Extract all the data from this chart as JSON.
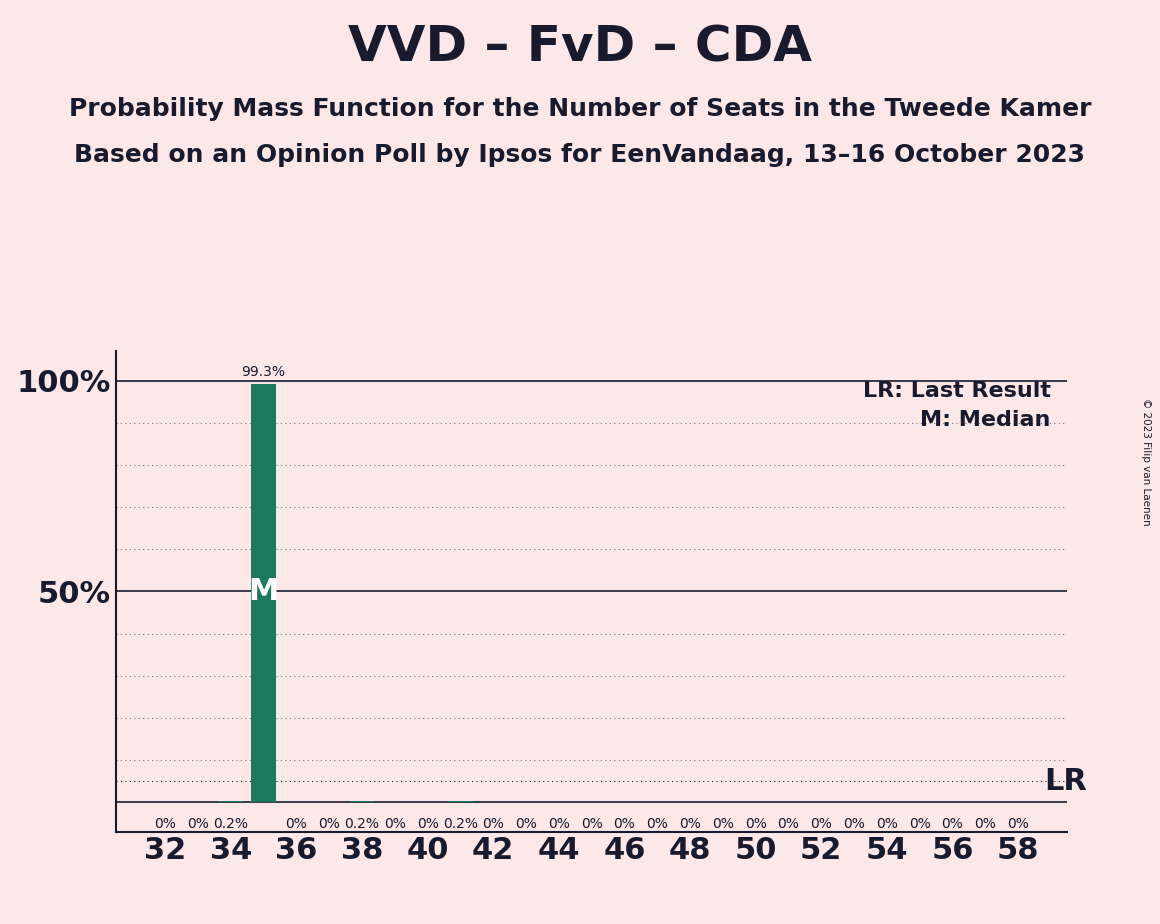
{
  "title": "VVD – FvD – CDA",
  "subtitle1": "Probability Mass Function for the Number of Seats in the Tweede Kamer",
  "subtitle2": "Based on an Opinion Poll by Ipsos for EenVandaag, 13–16 October 2023",
  "copyright": "© 2023 Filip van Laenen",
  "background_color": "#fce8e8",
  "bar_color": "#1a7a5e",
  "seats": [
    32,
    33,
    34,
    35,
    36,
    37,
    38,
    39,
    40,
    41,
    42,
    43,
    44,
    45,
    46,
    47,
    48,
    49,
    50,
    51,
    52,
    53,
    54,
    55,
    56,
    57,
    58
  ],
  "values": [
    0.0,
    0.0,
    0.2,
    99.3,
    0.0,
    0.0,
    0.2,
    0.0,
    0.0,
    0.2,
    0.0,
    0.0,
    0.0,
    0.0,
    0.0,
    0.0,
    0.0,
    0.0,
    0.0,
    0.0,
    0.0,
    0.0,
    0.0,
    0.0,
    0.0,
    0.0,
    0.0
  ],
  "bar_labels": [
    "0%",
    "0%",
    "0.2%",
    "",
    "0%",
    "0%",
    "0.2%",
    "0%",
    "0%",
    "0.2%",
    "0%",
    "0%",
    "0%",
    "0%",
    "0%",
    "0%",
    "0%",
    "0%",
    "0%",
    "0%",
    "0%",
    "0%",
    "0%",
    "0%",
    "0%",
    "0%",
    "0%"
  ],
  "median_seat": 35,
  "lr_seat": 58,
  "lr_value": 5.0,
  "yticks": [
    0,
    10,
    20,
    30,
    40,
    50,
    60,
    70,
    80,
    90,
    100
  ],
  "solid_lines": [
    0,
    50,
    100
  ],
  "xticks": [
    32,
    34,
    36,
    38,
    40,
    42,
    44,
    46,
    48,
    50,
    52,
    54,
    56,
    58
  ],
  "solid_line_color": "#1a1a2e",
  "dotted_line_color": "#777777",
  "text_color": "#1a1a2e",
  "lr_label_legend": "LR: Last Result",
  "m_label_legend": "M: Median",
  "title_fontsize": 36,
  "subtitle_fontsize": 18,
  "legend_fontsize": 16,
  "bar_label_fontsize": 10,
  "ytick_fontsize": 22,
  "xtick_fontsize": 22
}
